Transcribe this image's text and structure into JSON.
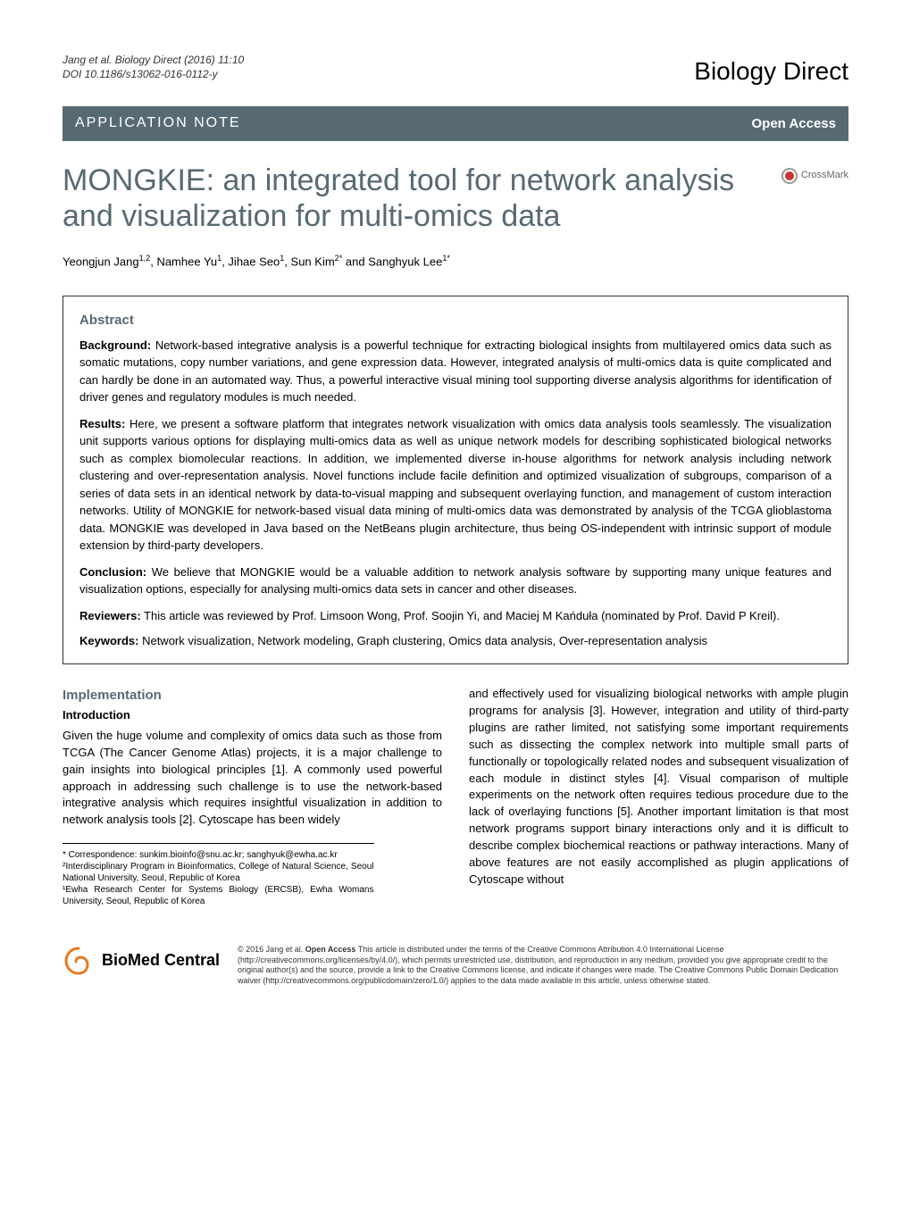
{
  "header": {
    "citation_line1": "Jang et al. Biology Direct  (2016) 11:10",
    "citation_line2": "DOI 10.1186/s13062-016-0112-y",
    "journal_name": "Biology Direct"
  },
  "section_bar": {
    "type": "APPLICATION NOTE",
    "access": "Open Access"
  },
  "crossmark_label": "CrossMark",
  "title": "MONGKIE: an integrated tool for network analysis and visualization for multi-omics data",
  "authors_html": "Yeongjun Jang<sup>1,2</sup>, Namhee Yu<sup>1</sup>, Jihae Seo<sup>1</sup>, Sun Kim<sup>2*</sup> and Sanghyuk Lee<sup>1*</sup>",
  "abstract": {
    "heading": "Abstract",
    "background": {
      "label": "Background:",
      "text": " Network-based integrative analysis is a powerful technique for extracting biological insights from multilayered omics data such as somatic mutations, copy number variations, and gene expression data. However, integrated analysis of multi-omics data is quite complicated and can hardly be done in an automated way. Thus, a powerful interactive visual mining tool supporting diverse analysis algorithms for identification of driver genes and regulatory modules is much needed."
    },
    "results": {
      "label": "Results:",
      "text": " Here, we present a software platform that integrates network visualization with omics data analysis tools seamlessly. The visualization unit supports various options for displaying multi-omics data as well as unique network models for describing sophisticated biological networks such as complex biomolecular reactions. In addition, we implemented diverse in-house algorithms for network analysis including network clustering and over-representation analysis. Novel functions include facile definition and optimized visualization of subgroups, comparison of a series of data sets in an identical network by data-to-visual mapping and subsequent overlaying function, and management of custom interaction networks. Utility of MONGKIE for network-based visual data mining of multi-omics data was demonstrated by analysis of the TCGA glioblastoma data. MONGKIE was developed in Java based on the NetBeans plugin architecture, thus being OS-independent with intrinsic support of module extension by third-party developers."
    },
    "conclusion": {
      "label": "Conclusion:",
      "text": " We believe that MONGKIE would be a valuable addition to network analysis software by supporting many unique features and visualization options, especially for analysing multi-omics data sets in cancer and other diseases."
    },
    "reviewers": {
      "label": "Reviewers:",
      "text": " This article was reviewed by Prof. Limsoon Wong, Prof. Soojin Yi, and Maciej M Kańduła (nominated by Prof. David P Kreil)."
    },
    "keywords": {
      "label": "Keywords:",
      "text": " Network visualization, Network modeling, Graph clustering, Omics data analysis, Over-representation analysis"
    }
  },
  "body": {
    "implementation_heading": "Implementation",
    "introduction_heading": "Introduction",
    "col1_text": "Given the huge volume and complexity of omics data such as those from TCGA (The Cancer Genome Atlas) projects, it is a major challenge to gain insights into biological principles [1]. A commonly used powerful approach in addressing such challenge is to use the network-based integrative analysis which requires insightful visualization in addition to network analysis tools [2]. Cytoscape has been widely",
    "col2_text": "and effectively used for visualizing biological networks with ample plugin programs for analysis [3]. However, integration and utility of third-party plugins are rather limited, not satisfying some important requirements such as dissecting the complex network into multiple small parts of functionally or topologically related nodes and subsequent visualization of each module in distinct styles [4]. Visual comparison of multiple experiments on the network often requires tedious procedure due to the lack of overlaying functions [5]. Another important limitation is that most network programs support binary interactions only and it is difficult to describe complex biochemical reactions or pathway interactions. Many of above features are not easily accomplished as plugin applications of Cytoscape without"
  },
  "footnotes": {
    "correspondence": "* Correspondence: sunkim.bioinfo@snu.ac.kr; sanghyuk@ewha.ac.kr",
    "affil2": "²Interdisciplinary Program in Bioinformatics, College of Natural Science, Seoul National University, Seoul, Republic of Korea",
    "affil1": "¹Ewha Research Center for Systems Biology (ERCSB), Ewha Womans University, Seoul, Republic of Korea"
  },
  "footer": {
    "bmc_name": "BioMed Central",
    "license_html": "© 2016 Jang et al. <b>Open Access</b> This article is distributed under the terms of the Creative Commons Attribution 4.0 International License (http://creativecommons.org/licenses/by/4.0/), which permits unrestricted use, distribution, and reproduction in any medium, provided you give appropriate credit to the original author(s) and the source, provide a link to the Creative Commons license, and indicate if changes were made. The Creative Commons Public Domain Dedication waiver (http://creativecommons.org/publicdomain/zero/1.0/) applies to the data made available in this article, unless otherwise stated."
  },
  "colors": {
    "bar_bg": "#576a73",
    "heading_color": "#576a73",
    "crossmark_red": "#cc3333",
    "bmc_orange": "#e67a1f"
  }
}
